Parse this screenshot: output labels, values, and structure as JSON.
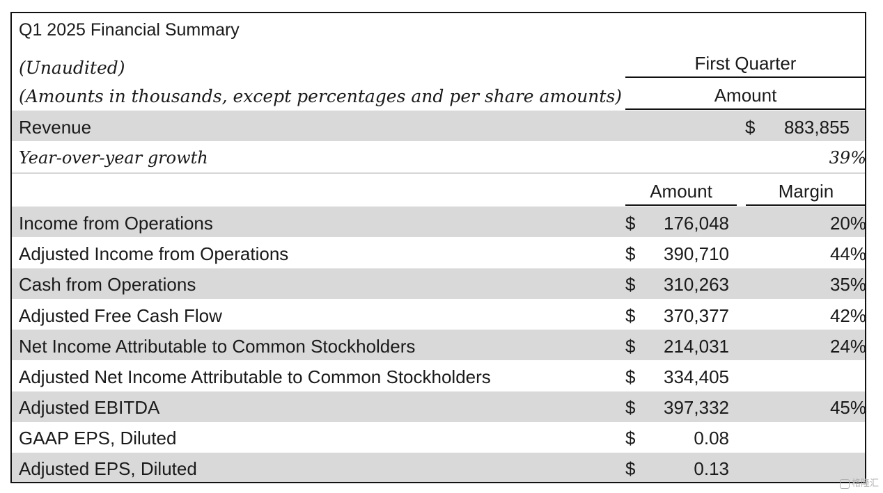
{
  "table": {
    "title": "Q1 2025 Financial Summary",
    "note1": "(Unaudited)",
    "note2": "(Amounts in thousands, except percentages and per share amounts)",
    "header_period": "First Quarter",
    "header_amount": "Amount",
    "revenue": {
      "label": "Revenue",
      "currency": "$",
      "value": "883,855"
    },
    "growth": {
      "label": "Year-over-year growth",
      "value": "39%"
    },
    "sub_headers": {
      "amount": "Amount",
      "margin": "Margin"
    },
    "rows": [
      {
        "label": "Income from Operations",
        "currency": "$",
        "amount": "176,048",
        "margin": "20%"
      },
      {
        "label": "Adjusted Income from Operations",
        "currency": "$",
        "amount": "390,710",
        "margin": "44%"
      },
      {
        "label": "Cash from Operations",
        "currency": "$",
        "amount": "310,263",
        "margin": "35%"
      },
      {
        "label": "Adjusted Free Cash Flow",
        "currency": "$",
        "amount": "370,377",
        "margin": "42%"
      },
      {
        "label": "Net Income Attributable to Common Stockholders",
        "currency": "$",
        "amount": "214,031",
        "margin": "24%"
      },
      {
        "label": "Adjusted Net Income Attributable to Common Stockholders",
        "currency": "$",
        "amount": "334,405",
        "margin": ""
      },
      {
        "label": "Adjusted EBITDA",
        "currency": "$",
        "amount": "397,332",
        "margin": "45%"
      },
      {
        "label": "GAAP EPS, Diluted",
        "currency": "$",
        "amount": "0.08",
        "margin": ""
      },
      {
        "label": "Adjusted EPS, Diluted",
        "currency": "$",
        "amount": "0.13",
        "margin": ""
      }
    ]
  },
  "watermark": {
    "text": "格隆汇",
    "icon": "watermark-logo-icon"
  }
}
